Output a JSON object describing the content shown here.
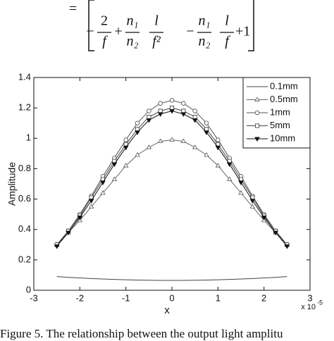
{
  "equation": {
    "equals": "=",
    "terms": [
      {
        "sign": "−",
        "num": "2",
        "den": "f"
      },
      {
        "sign": "+",
        "num": "n₁",
        "den": "n₂"
      },
      {
        "num": "l",
        "den": "f²"
      },
      {
        "sign": "−",
        "num": "n₁",
        "den": "n₂"
      },
      {
        "num": "l",
        "den": "f"
      }
    ],
    "tail": "+1"
  },
  "chart_data": {
    "type": "line",
    "xlabel": "x",
    "ylabel": "Amplitude",
    "x_multiplier": "x 10",
    "x_exponent": "-5",
    "x": [
      -2.5,
      -2.25,
      -2,
      -1.75,
      -1.5,
      -1.25,
      -1,
      -0.75,
      -0.5,
      -0.25,
      0,
      0.25,
      0.5,
      0.75,
      1,
      1.25,
      1.5,
      1.75,
      2,
      2.25,
      2.5
    ],
    "series": [
      {
        "name": "0.1mm",
        "color": "#444444",
        "marker": "none",
        "values": [
          0.09,
          0.085,
          0.081,
          0.077,
          0.074,
          0.071,
          0.069,
          0.067,
          0.066,
          0.065,
          0.065,
          0.065,
          0.066,
          0.067,
          0.069,
          0.071,
          0.074,
          0.077,
          0.081,
          0.085,
          0.09
        ]
      },
      {
        "name": "0.5mm",
        "color": "#666666",
        "marker": "triangle",
        "values": [
          0.3,
          0.38,
          0.46,
          0.55,
          0.64,
          0.73,
          0.82,
          0.89,
          0.94,
          0.98,
          0.99,
          0.98,
          0.94,
          0.89,
          0.82,
          0.73,
          0.64,
          0.55,
          0.46,
          0.38,
          0.3
        ]
      },
      {
        "name": "1mm",
        "color": "#555555",
        "marker": "circle",
        "values": [
          0.3,
          0.39,
          0.5,
          0.62,
          0.75,
          0.87,
          0.99,
          1.1,
          1.18,
          1.23,
          1.25,
          1.23,
          1.18,
          1.1,
          0.99,
          0.87,
          0.75,
          0.62,
          0.5,
          0.39,
          0.3
        ]
      },
      {
        "name": "5mm",
        "color": "#444444",
        "marker": "square",
        "values": [
          0.3,
          0.39,
          0.49,
          0.61,
          0.73,
          0.85,
          0.96,
          1.06,
          1.14,
          1.18,
          1.2,
          1.18,
          1.14,
          1.06,
          0.96,
          0.85,
          0.73,
          0.61,
          0.49,
          0.39,
          0.3
        ]
      },
      {
        "name": "10mm",
        "color": "#111111",
        "marker": "triangle-down",
        "values": [
          0.29,
          0.38,
          0.48,
          0.59,
          0.71,
          0.83,
          0.94,
          1.04,
          1.12,
          1.16,
          1.18,
          1.16,
          1.12,
          1.04,
          0.94,
          0.83,
          0.71,
          0.59,
          0.48,
          0.38,
          0.29
        ]
      }
    ],
    "xlim": [
      -3,
      3
    ],
    "ylim": [
      0,
      1.4
    ],
    "xticks": [
      -3,
      -2,
      -1,
      0,
      1,
      2,
      3
    ],
    "yticks": [
      0,
      0.2,
      0.4,
      0.6,
      0.8,
      1,
      1.2,
      1.4
    ],
    "legend": "upper right"
  },
  "caption": "Figure 5.   The relationship between the output light amplitu"
}
